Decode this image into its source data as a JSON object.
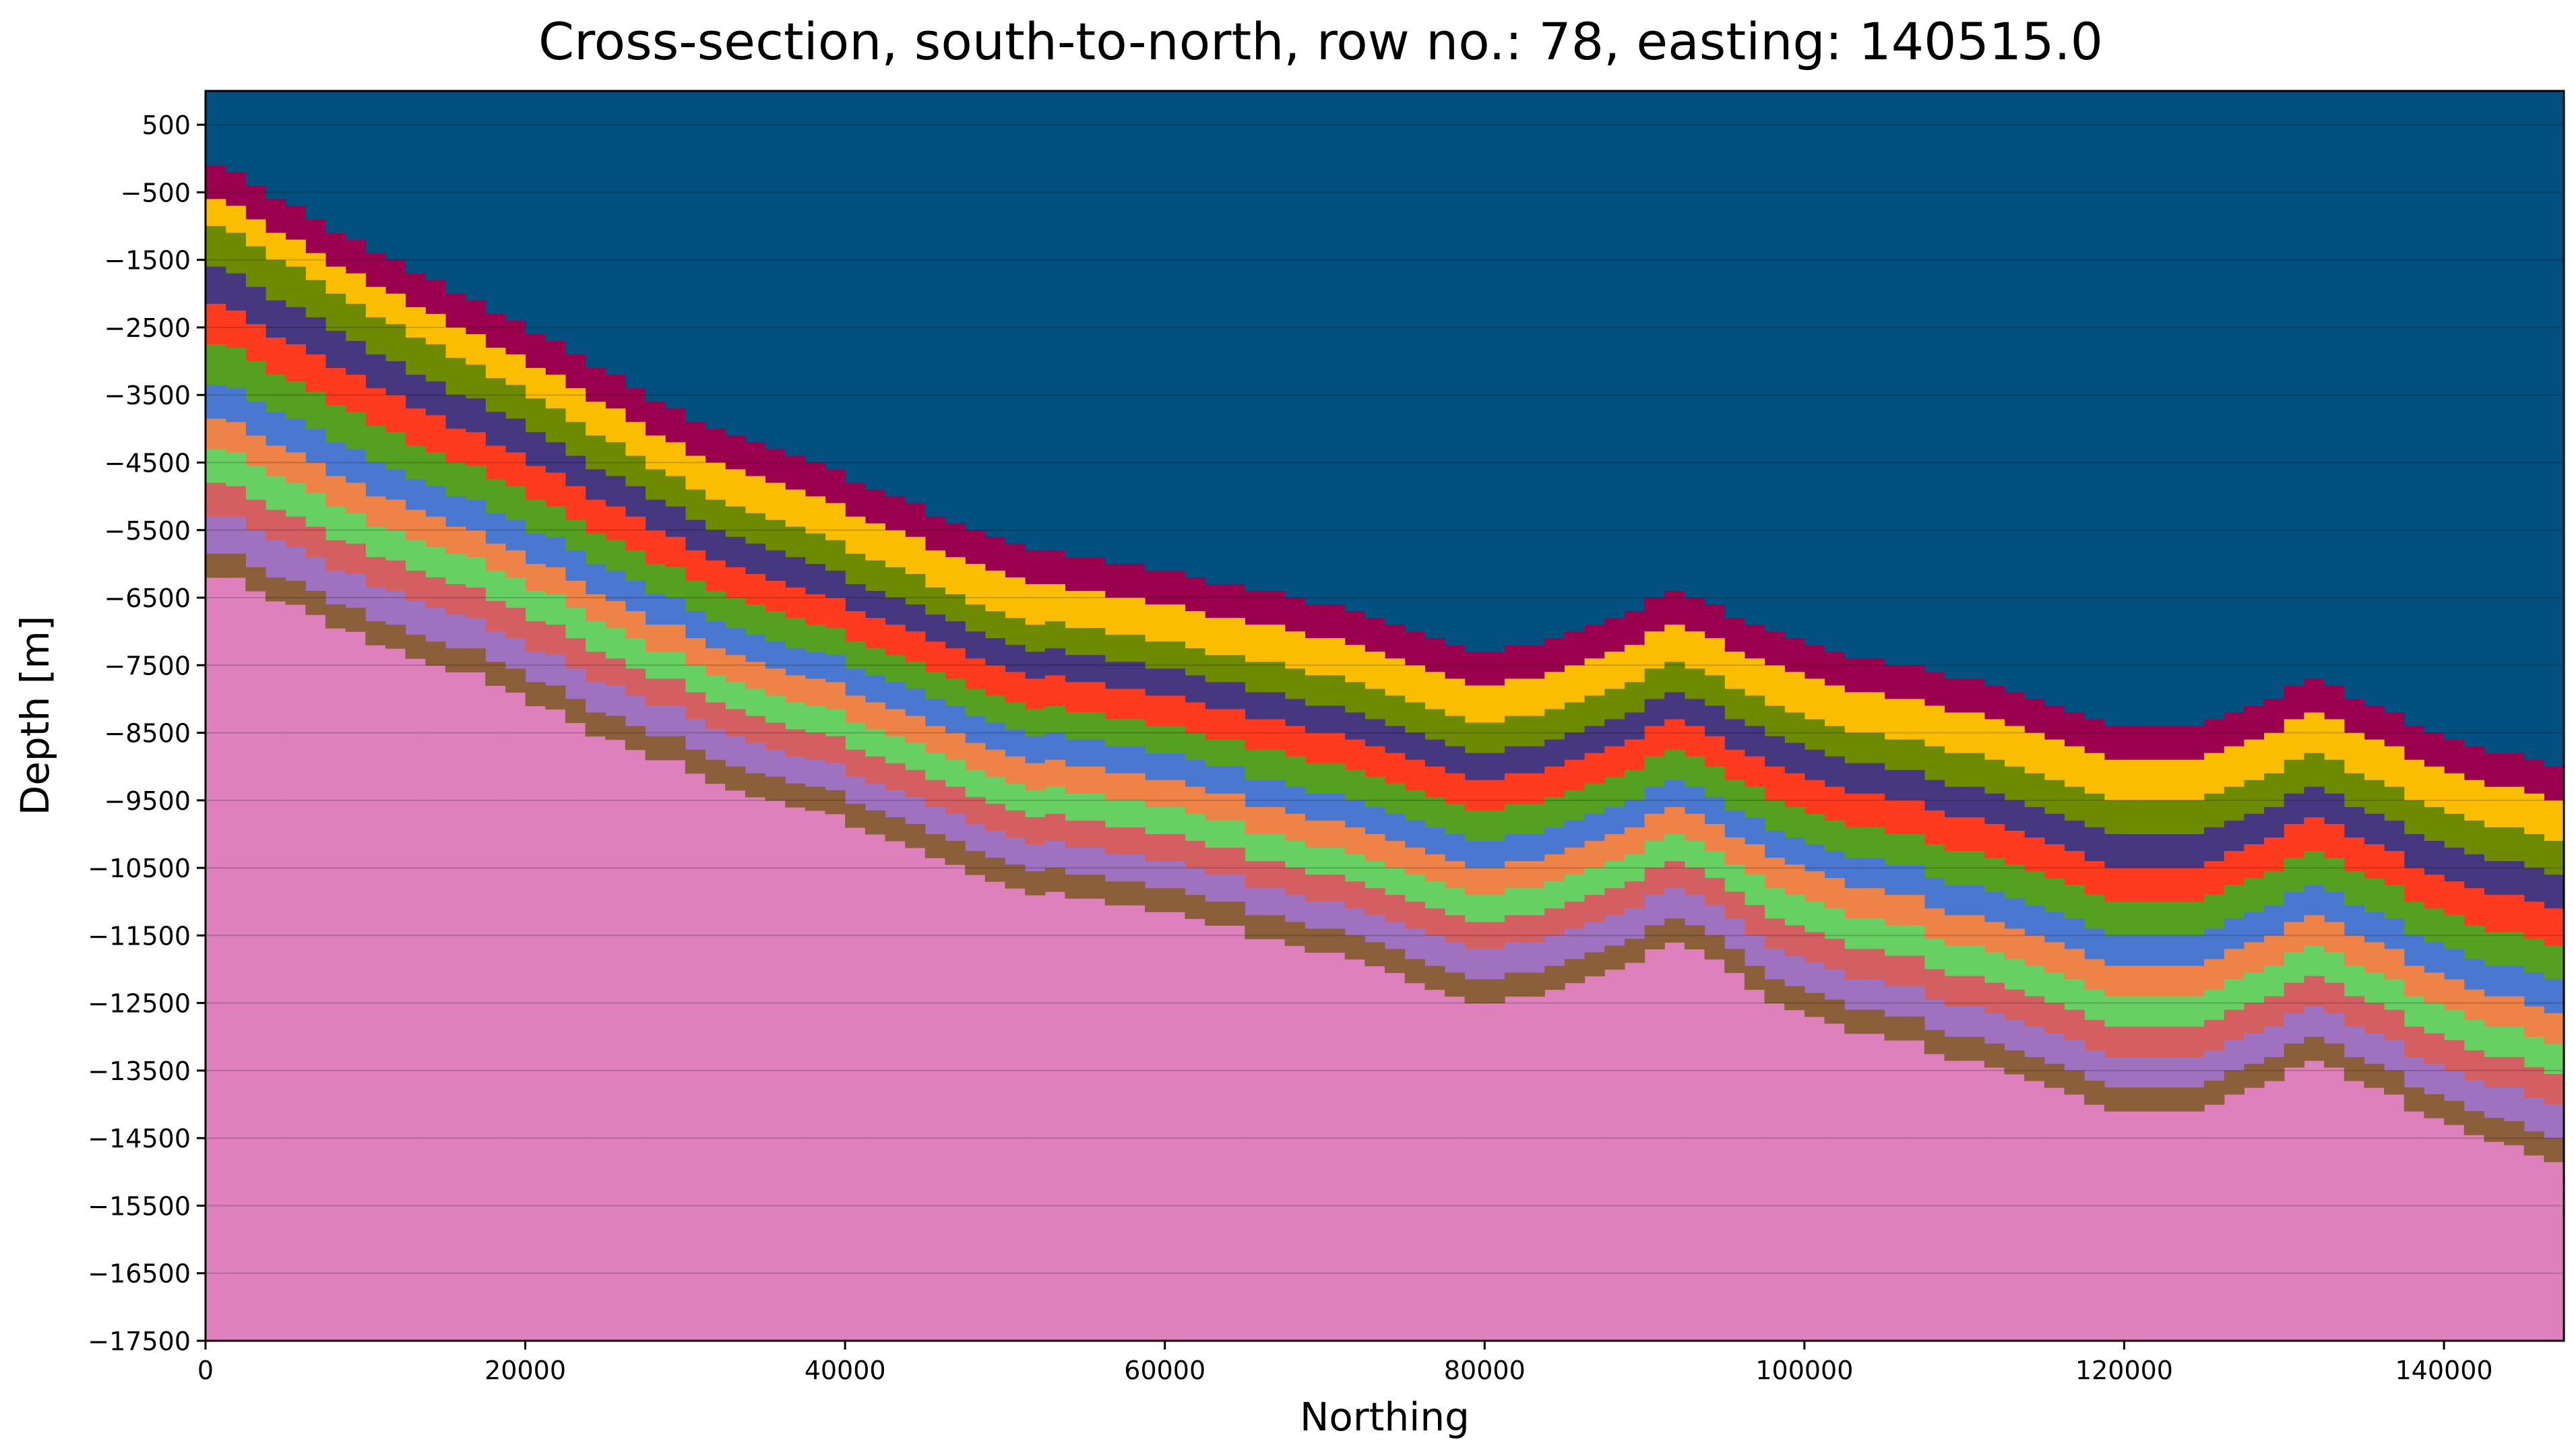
{
  "chart_data": {
    "type": "area",
    "title": "Cross-section, south-to-north, row no.: 78, easting: 140515.0",
    "xlabel": "Northing",
    "ylabel": "Depth [m]",
    "xlim": [
      0,
      147500
    ],
    "ylim": [
      -17500,
      1000
    ],
    "xticks": [
      "0",
      "20000",
      "40000",
      "60000",
      "80000",
      "100000",
      "120000",
      "140000"
    ],
    "yticks": [
      "500",
      "−500",
      "−1500",
      "−2500",
      "−3500",
      "−4500",
      "−5500",
      "−6500",
      "−7500",
      "−8500",
      "−9500",
      "−10500",
      "−11500",
      "−12500",
      "−13500",
      "−14500",
      "−15500",
      "−16500",
      "−17500"
    ],
    "grid": "horizontal",
    "x": [
      0,
      10000,
      20000,
      30000,
      40000,
      50000,
      60000,
      70000,
      80000,
      85000,
      92000,
      100000,
      110000,
      120000,
      125000,
      132000,
      140000,
      147500
    ],
    "top_surface": [
      0,
      -1300,
      -2500,
      -3800,
      -4700,
      -5700,
      -6100,
      -6600,
      -7300,
      -7100,
      -6400,
      -7200,
      -7700,
      -8400,
      -8400,
      -7700,
      -8600,
      -9000
    ],
    "series": [
      {
        "color": "#9b004f",
        "thickness": [
          480,
          480,
          480,
          480,
          480,
          480,
          480,
          480,
          480,
          480,
          480,
          480,
          480,
          480,
          480,
          480,
          480,
          480
        ]
      },
      {
        "color": "#fbbd00",
        "thickness": [
          400,
          430,
          470,
          520,
          560,
          580,
          560,
          560,
          560,
          560,
          560,
          580,
          600,
          620,
          620,
          600,
          620,
          620
        ]
      },
      {
        "color": "#6d8a00",
        "thickness": [
          600,
          560,
          500,
          460,
          430,
          420,
          420,
          430,
          440,
          440,
          440,
          460,
          480,
          500,
          500,
          480,
          500,
          520
        ]
      },
      {
        "color": "#453780",
        "thickness": [
          550,
          520,
          480,
          450,
          420,
          400,
          400,
          410,
          420,
          420,
          420,
          440,
          460,
          480,
          480,
          460,
          480,
          500
        ]
      },
      {
        "color": "#ff3b1f",
        "thickness": [
          580,
          550,
          500,
          470,
          450,
          440,
          440,
          450,
          460,
          460,
          460,
          480,
          500,
          520,
          520,
          500,
          520,
          540
        ]
      },
      {
        "color": "#55a020",
        "thickness": [
          600,
          540,
          480,
          440,
          420,
          420,
          420,
          430,
          440,
          440,
          440,
          460,
          480,
          500,
          500,
          480,
          500,
          520
        ]
      },
      {
        "color": "#4a78d0",
        "thickness": [
          520,
          480,
          450,
          420,
          400,
          390,
          390,
          400,
          410,
          410,
          410,
          420,
          440,
          460,
          460,
          440,
          460,
          480
        ]
      },
      {
        "color": "#ee8347",
        "thickness": [
          450,
          430,
          420,
          410,
          400,
          400,
          400,
          410,
          420,
          420,
          420,
          430,
          440,
          450,
          450,
          440,
          450,
          460
        ]
      },
      {
        "color": "#67d063",
        "thickness": [
          500,
          470,
          440,
          420,
          410,
          400,
          400,
          410,
          420,
          420,
          420,
          430,
          440,
          460,
          460,
          440,
          460,
          470
        ]
      },
      {
        "color": "#d35f61",
        "thickness": [
          480,
          450,
          430,
          420,
          410,
          400,
          400,
          410,
          420,
          420,
          420,
          430,
          440,
          460,
          460,
          440,
          460,
          470
        ]
      },
      {
        "color": "#9f72c0",
        "thickness": [
          550,
          500,
          460,
          430,
          420,
          410,
          410,
          420,
          430,
          430,
          430,
          440,
          450,
          470,
          470,
          450,
          470,
          480
        ]
      },
      {
        "color": "#8c5f3b",
        "thickness": [
          350,
          350,
          350,
          350,
          350,
          350,
          350,
          350,
          350,
          350,
          350,
          350,
          350,
          350,
          350,
          350,
          350,
          350
        ]
      }
    ],
    "basement_color": "#dd80bc",
    "sky_color": "#02507f"
  }
}
